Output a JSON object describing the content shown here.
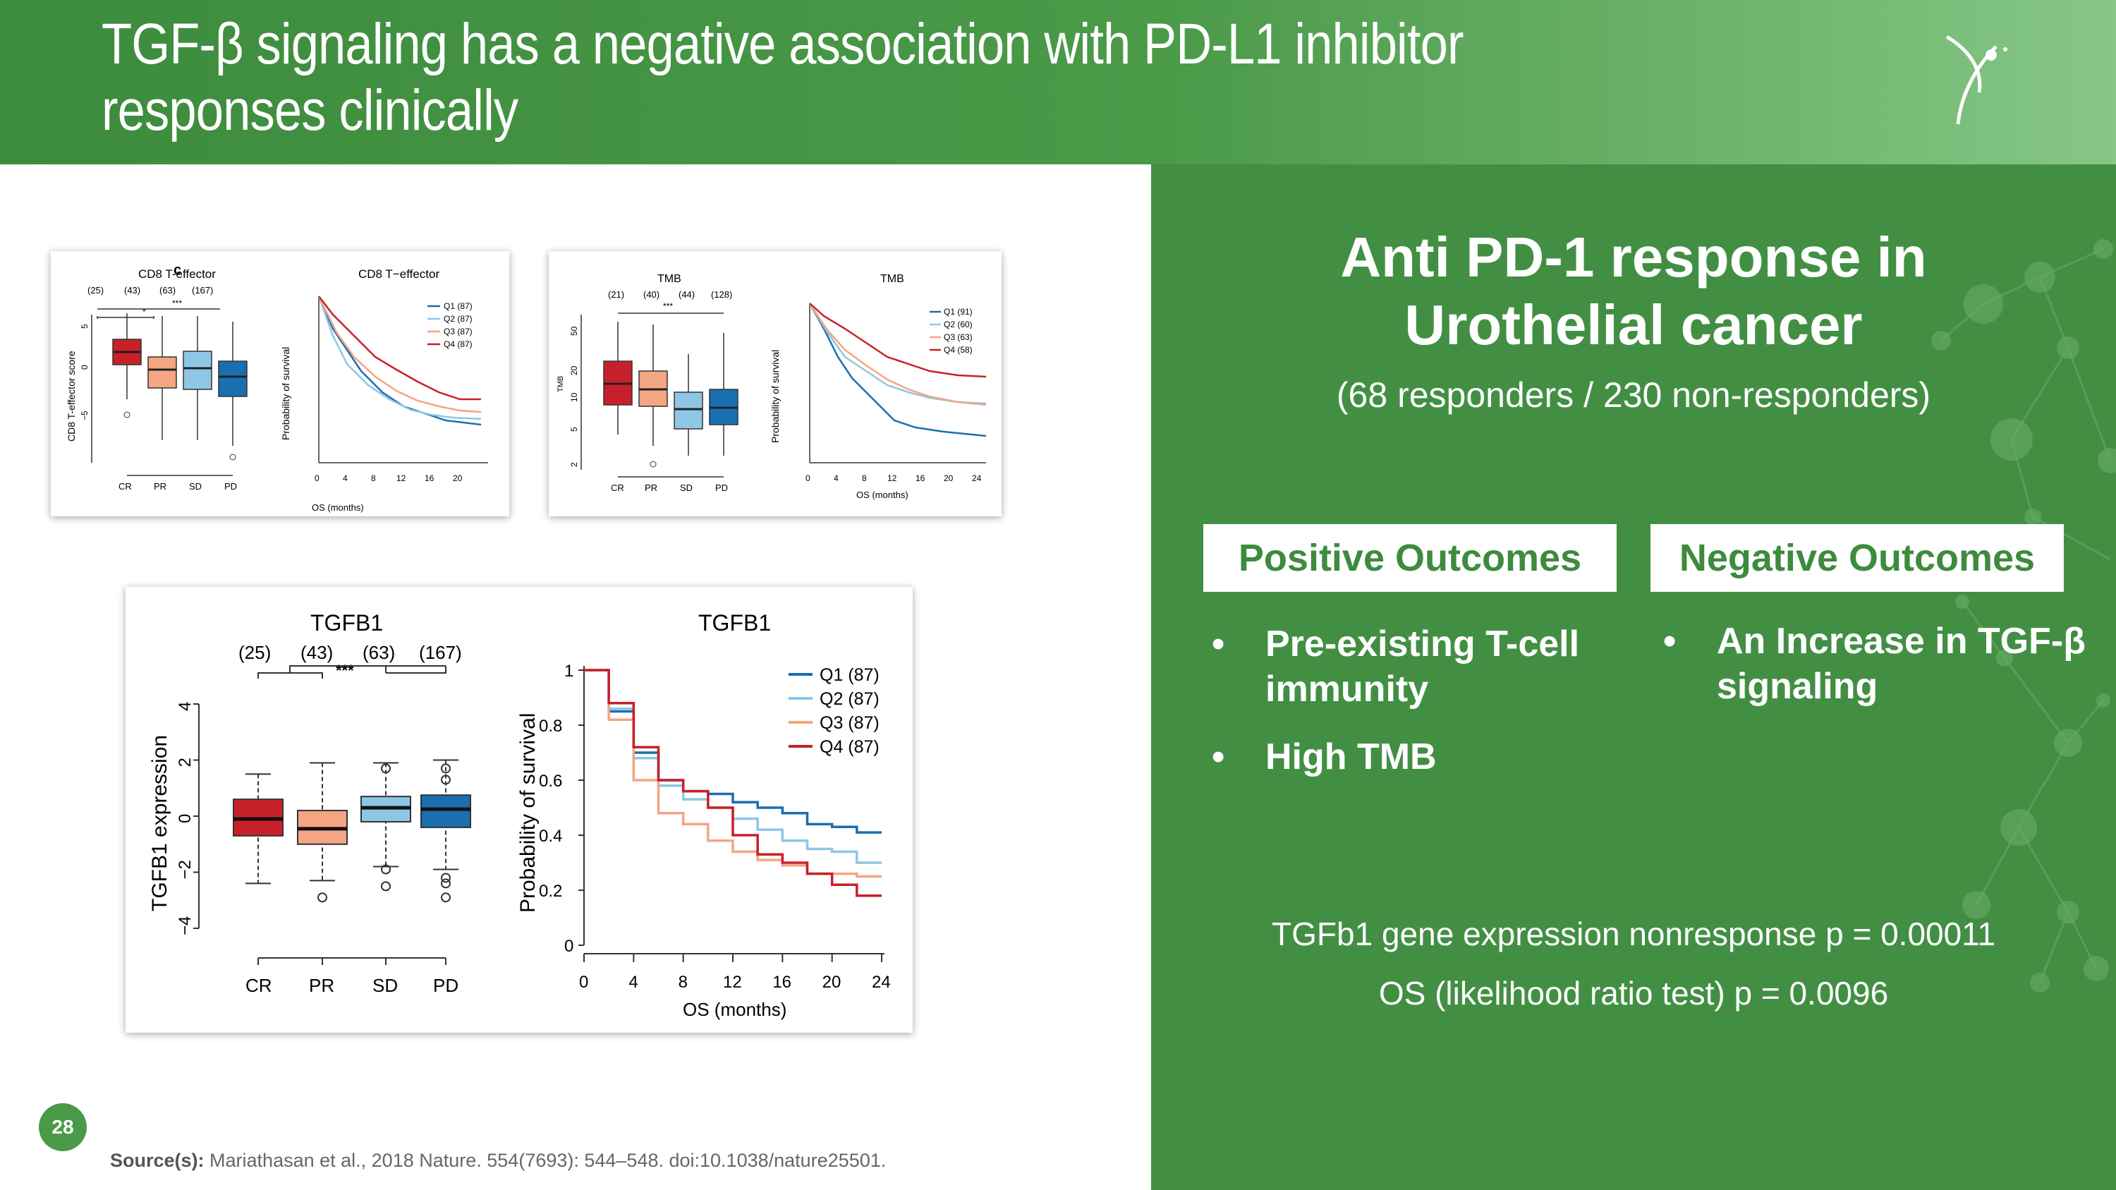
{
  "slide": {
    "title": "TGF-β signaling has a negative association with PD-L1 inhibitor responses clinically",
    "page_number": "28",
    "source_label": "Source(s):",
    "source_text": "Mariathasan et al., 2018 Nature. 554(7693): 544–548. doi:10.1038/nature25501."
  },
  "panel": {
    "title_line1": "Anti PD-1 response in",
    "title_line2": "Urothelial cancer",
    "subtitle": "(68 responders / 230 non-responders)",
    "positive": {
      "heading": "Positive Outcomes",
      "items": [
        "Pre-existing T-cell immunity",
        "High TMB"
      ]
    },
    "negative": {
      "heading": "Negative Outcomes",
      "items": [
        "An Increase in TGF-β signaling"
      ]
    },
    "stat1": "TGFb1 gene expression nonresponse  p = 0.00011",
    "stat2": "OS (likelihood ratio test) p = 0.0096"
  },
  "colors": {
    "header_green": "#3d8b3d",
    "panel_green": "#428f44",
    "q1": "#1a6fb0",
    "q2": "#8ec6e6",
    "q3": "#f4a582",
    "q4": "#c8202a",
    "cr": "#c8202a",
    "pr": "#f4a582",
    "sd": "#8ec6e6",
    "pd": "#1a6fb0"
  },
  "figures": {
    "cd8": {
      "box_title": "CD8 T-effector",
      "panel_letter": "c",
      "counts": [
        "(25)",
        "(43)",
        "(63)",
        "(167)"
      ],
      "y_label": "CD8 T-effector score",
      "y_ticks": [
        "5",
        "0",
        "−5"
      ],
      "km_title": "CD8 T−effector",
      "km_y_label": "Probability of survival",
      "km_x_label": "OS (months)",
      "legend": [
        "Q1 (87)",
        "Q2 (87)",
        "Q3 (87)",
        "Q4 (87)"
      ]
    },
    "tmb": {
      "box_title": "TMB",
      "counts": [
        "(21)",
        "(40)",
        "(44)",
        "(128)"
      ],
      "y_ticks": [
        "50",
        "20",
        "10",
        "5",
        "2"
      ],
      "y_label": "TMB",
      "km_title": "TMB",
      "km_y_label": "Probability of survival",
      "km_x_label": "OS (months)",
      "legend": [
        "Q1 (91)",
        "Q2 (60)",
        "Q3 (63)",
        "Q4 (58)"
      ]
    },
    "tgfb1": {
      "box_title": "TGFB1",
      "counts": [
        "(25)",
        "(43)",
        "(63)",
        "(167)"
      ],
      "y_label": "TGFB1 expression",
      "y_ticks": [
        "4",
        "2",
        "0",
        "−2",
        "−4"
      ],
      "km_title": "TGFB1",
      "km_y_label": "Probability of survival",
      "km_x_label": "OS (months)",
      "legend": [
        "Q1 (87)",
        "Q2 (87)",
        "Q3 (87)",
        "Q4 (87)"
      ]
    },
    "categories": [
      "CR",
      "PR",
      "SD",
      "PD"
    ],
    "sig": "***",
    "sig_small": "*",
    "km_y_ticks": [
      "0",
      "0.2",
      "0.4",
      "0.6",
      "0.8",
      "1"
    ],
    "km_x_ticks": [
      "0",
      "4",
      "8",
      "12",
      "16",
      "20",
      "24"
    ]
  },
  "chart_data": [
    {
      "type": "box",
      "title": "TGFB1",
      "ylabel": "TGFB1 expression",
      "categories": [
        "CR",
        "PR",
        "SD",
        "PD"
      ],
      "ylim": [
        -4,
        4
      ],
      "boxes": [
        {
          "category": "CR",
          "min": -2.4,
          "q1": -0.7,
          "median": -0.1,
          "q3": 0.6,
          "max": 1.5
        },
        {
          "category": "PR",
          "min": -2.3,
          "q1": -1.0,
          "median": -0.45,
          "q3": 0.2,
          "max": 1.9
        },
        {
          "category": "SD",
          "min": -1.8,
          "q1": -0.2,
          "median": 0.3,
          "q3": 0.7,
          "max": 1.9
        },
        {
          "category": "PD",
          "min": -1.9,
          "q1": -0.4,
          "median": 0.25,
          "q3": 0.75,
          "max": 2.0
        }
      ]
    },
    {
      "type": "line",
      "title": "TGFB1",
      "xlabel": "OS (months)",
      "ylabel": "Probability of survival",
      "xlim": [
        0,
        24
      ],
      "ylim": [
        0,
        1
      ],
      "series": [
        {
          "name": "Q1 (87)",
          "x": [
            0,
            2,
            4,
            6,
            8,
            10,
            12,
            14,
            16,
            18,
            20,
            22,
            24
          ],
          "y": [
            1,
            0.85,
            0.7,
            0.6,
            0.56,
            0.55,
            0.52,
            0.5,
            0.48,
            0.44,
            0.43,
            0.41,
            0.41
          ]
        },
        {
          "name": "Q2 (87)",
          "x": [
            0,
            2,
            4,
            6,
            8,
            10,
            12,
            14,
            16,
            18,
            20,
            22,
            24
          ],
          "y": [
            1,
            0.86,
            0.68,
            0.58,
            0.53,
            0.5,
            0.46,
            0.42,
            0.38,
            0.35,
            0.34,
            0.3,
            0.3
          ]
        },
        {
          "name": "Q3 (87)",
          "x": [
            0,
            2,
            4,
            6,
            8,
            10,
            12,
            14,
            16,
            18,
            20,
            22,
            24
          ],
          "y": [
            1,
            0.82,
            0.6,
            0.48,
            0.44,
            0.38,
            0.34,
            0.31,
            0.29,
            0.26,
            0.26,
            0.25,
            0.25
          ]
        },
        {
          "name": "Q4 (87)",
          "x": [
            0,
            2,
            4,
            6,
            8,
            10,
            12,
            14,
            16,
            18,
            20,
            22,
            24
          ],
          "y": [
            1,
            0.88,
            0.72,
            0.6,
            0.56,
            0.5,
            0.4,
            0.33,
            0.3,
            0.26,
            0.22,
            0.18,
            0.18
          ]
        }
      ]
    }
  ]
}
